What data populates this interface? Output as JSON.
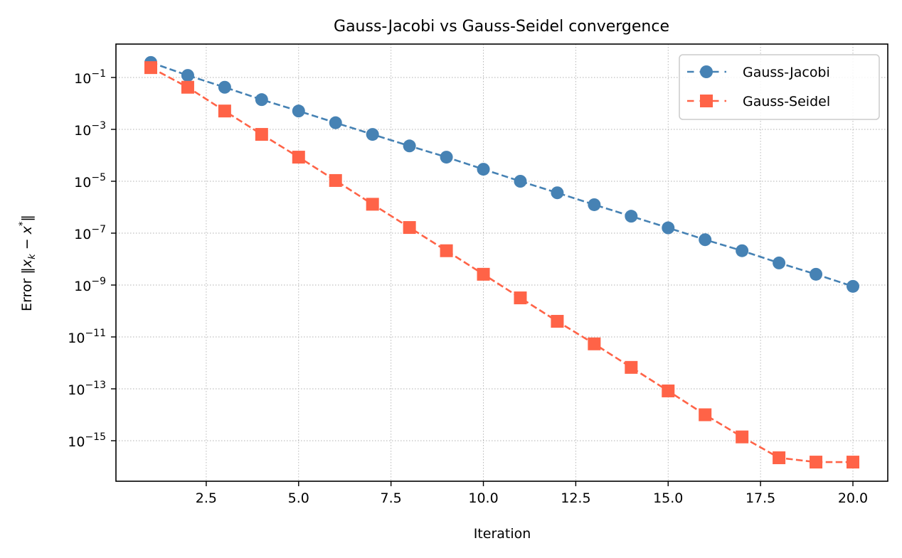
{
  "chart_data": {
    "type": "line",
    "title": "Gauss-Jacobi vs Gauss-Seidel convergence",
    "xlabel": "Iteration",
    "ylabel": "Error ‖x_k − x*‖",
    "yscale": "log",
    "xlim": [
      0.05,
      20.95
    ],
    "ylim_log10": [
      -16.65,
      0.6
    ],
    "x_ticks": [
      2.5,
      5.0,
      7.5,
      10.0,
      12.5,
      15.0,
      17.5,
      20.0
    ],
    "x_tick_labels": [
      "2.5",
      "5.0",
      "7.5",
      "10.0",
      "12.5",
      "15.0",
      "17.5",
      "20.0"
    ],
    "y_ticks_log10": [
      -1,
      -3,
      -5,
      -7,
      -9,
      -11,
      -13,
      -15
    ],
    "y_tick_labels": [
      "10^-1",
      "10^-3",
      "10^-5",
      "10^-7",
      "10^-9",
      "10^-11",
      "10^-13",
      "10^-15"
    ],
    "grid": true,
    "legend_position": "upper right",
    "x": [
      1,
      2,
      3,
      4,
      5,
      6,
      7,
      8,
      9,
      10,
      11,
      12,
      13,
      14,
      15,
      16,
      17,
      18,
      19,
      20
    ],
    "series": [
      {
        "name": "Gauss-Jacobi",
        "color": "#4682b4",
        "marker": "circle",
        "linestyle": "dashed",
        "values": [
          0.38,
          0.12,
          0.042,
          0.014,
          0.0051,
          0.0018,
          0.00064,
          0.00023,
          8.5e-05,
          2.9e-05,
          1e-05,
          3.6e-06,
          1.25e-06,
          4.5e-07,
          1.6e-07,
          5.6e-08,
          2.1e-08,
          7.1e-09,
          2.6e-09,
          8.9e-10
        ]
      },
      {
        "name": "Gauss-Seidel",
        "color": "#ff6347",
        "marker": "square",
        "linestyle": "dashed",
        "values": [
          0.24,
          0.042,
          0.0051,
          0.00064,
          8.5e-05,
          1.07e-05,
          1.3e-06,
          1.65e-07,
          2.1e-08,
          2.6e-09,
          3.2e-10,
          4e-11,
          5.4e-12,
          6.7e-13,
          8.3e-14,
          1e-14,
          1.4e-15,
          2.2e-16,
          1.5e-16,
          1.5e-16
        ]
      }
    ]
  }
}
